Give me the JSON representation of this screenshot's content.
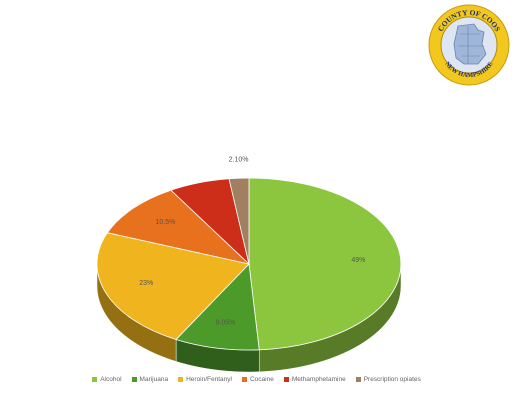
{
  "seal": {
    "top_text": "COUNTY OF COOS",
    "bottom_text": "NEW HAMPSHIRE",
    "colors": {
      "ring": "#f2c81e",
      "inner": "#dfe6f3",
      "map": "#9fb6d8"
    }
  },
  "chart_data": {
    "type": "pie",
    "style": "3d",
    "title": "",
    "categories": [
      "Alcohol",
      "Marijuana",
      "Heroin/Fentanyl",
      "Cocaine",
      "Methamphetamine",
      "Prescription opiates"
    ],
    "values": [
      49,
      9.05,
      23,
      10.5,
      6.5,
      2.1
    ],
    "labels": [
      "49%",
      "9.05%",
      "23%",
      "10.5%",
      "",
      "2.10%"
    ],
    "colors": [
      "#8cc63f",
      "#4c9a2a",
      "#f0b41e",
      "#e8711e",
      "#cc2e1a",
      "#a08060"
    ],
    "legend": "bottom"
  }
}
